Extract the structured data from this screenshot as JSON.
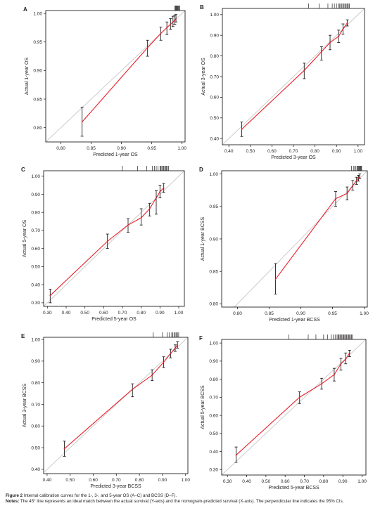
{
  "caption": {
    "figure_label": "Figure 2",
    "figure_text": "Internal calibration curves for the 1-, 3-, and 5-year OS (A–C) and BCSS (D–F).",
    "notes_label": "Notes:",
    "notes_text": "The 45° line represents an ideal match between the actual survival (Y-axis) and the nomogram-predicted survival (X-axis). The perpendicular line indicates the 95% CIs."
  },
  "chart_data": [
    {
      "panel": "A",
      "type": "line",
      "xlabel": "Predicted 1-year OS",
      "ylabel": "Actual 1-year OS",
      "xlim": [
        0.775,
        1.005
      ],
      "ylim": [
        0.775,
        1.005
      ],
      "xticks": [
        "0.80",
        "0.85",
        "0.90",
        "0.95",
        "1.00"
      ],
      "yticks": [
        "0.80",
        "0.85",
        "0.90",
        "0.95",
        "1.00"
      ],
      "ideal_line": true,
      "x": [
        0.835,
        0.943,
        0.965,
        0.975,
        0.981,
        0.985,
        0.988,
        0.99
      ],
      "y": [
        0.81,
        0.94,
        0.965,
        0.975,
        0.981,
        0.985,
        0.988,
        0.991
      ],
      "ci_low": [
        0.785,
        0.925,
        0.953,
        0.963,
        0.972,
        0.977,
        0.981,
        0.985
      ],
      "ci_high": [
        0.836,
        0.953,
        0.976,
        0.985,
        0.991,
        0.995,
        0.997,
        0.998
      ],
      "rug": [
        0.988,
        0.989,
        0.99,
        0.991,
        0.992,
        0.993,
        0.994,
        0.995,
        0.996
      ]
    },
    {
      "panel": "B",
      "type": "line",
      "xlabel": "Predicted 3-year OS",
      "ylabel": "Actual 3-year OS",
      "xlim": [
        0.37,
        1.03
      ],
      "ylim": [
        0.37,
        1.03
      ],
      "xticks": [
        "0.40",
        "0.50",
        "0.60",
        "0.70",
        "0.80",
        "0.90",
        "1.00"
      ],
      "yticks": [
        "0.40",
        "0.50",
        "0.60",
        "0.70",
        "0.80",
        "0.90",
        "1.00"
      ],
      "ideal_line": true,
      "x": [
        0.46,
        0.75,
        0.83,
        0.87,
        0.91,
        0.93,
        0.95
      ],
      "y": [
        0.445,
        0.73,
        0.82,
        0.865,
        0.895,
        0.93,
        0.96
      ],
      "ci_low": [
        0.41,
        0.69,
        0.78,
        0.83,
        0.865,
        0.905,
        0.945
      ],
      "ci_high": [
        0.48,
        0.765,
        0.845,
        0.9,
        0.925,
        0.955,
        0.975
      ],
      "rug": [
        0.77,
        0.82,
        0.86,
        0.88,
        0.89,
        0.9,
        0.91,
        0.915,
        0.92,
        0.925,
        0.93,
        0.935,
        0.94,
        0.945,
        0.95,
        0.955,
        0.96
      ]
    },
    {
      "panel": "C",
      "type": "line",
      "xlabel": "Predicted 5-year OS",
      "ylabel": "Actual 5-year OS",
      "xlim": [
        0.28,
        1.03
      ],
      "ylim": [
        0.28,
        1.03
      ],
      "xticks": [
        "0.30",
        "0.40",
        "0.50",
        "0.60",
        "0.70",
        "0.80",
        "0.90",
        "1.00"
      ],
      "yticks": [
        "0.30",
        "0.40",
        "0.50",
        "0.60",
        "0.70",
        "0.80",
        "0.90",
        "1.00"
      ],
      "ideal_line": true,
      "x": [
        0.315,
        0.62,
        0.73,
        0.8,
        0.845,
        0.88,
        0.9,
        0.92
      ],
      "y": [
        0.34,
        0.64,
        0.73,
        0.77,
        0.82,
        0.88,
        0.915,
        0.935
      ],
      "ci_low": [
        0.3,
        0.6,
        0.69,
        0.73,
        0.78,
        0.79,
        0.88,
        0.91
      ],
      "ci_high": [
        0.375,
        0.68,
        0.765,
        0.82,
        0.85,
        0.92,
        0.95,
        0.96
      ],
      "rug": [
        0.7,
        0.78,
        0.83,
        0.86,
        0.87,
        0.88,
        0.89,
        0.9,
        0.905,
        0.91,
        0.915,
        0.92,
        0.925,
        0.93,
        0.935,
        0.94,
        0.945
      ]
    },
    {
      "panel": "D",
      "type": "line",
      "xlabel": "Predicted 1-year BCSS",
      "ylabel": "Actual 1-year BCSS",
      "xlim": [
        0.775,
        1.005
      ],
      "ylim": [
        0.795,
        1.005
      ],
      "xticks": [
        "0.80",
        "0.85",
        "0.90",
        "0.95",
        "1.00"
      ],
      "yticks": [
        "0.80",
        "0.85",
        "0.90",
        "0.95",
        "1.00"
      ],
      "ideal_line": true,
      "x": [
        0.86,
        0.955,
        0.973,
        0.982,
        0.988,
        0.991,
        0.993
      ],
      "y": [
        0.838,
        0.962,
        0.97,
        0.982,
        0.99,
        0.994,
        0.996
      ],
      "ci_low": [
        0.815,
        0.95,
        0.96,
        0.975,
        0.984,
        0.989,
        0.993
      ],
      "ci_high": [
        0.862,
        0.973,
        0.98,
        0.99,
        0.995,
        0.998,
        1.0
      ],
      "rug": [
        0.98,
        0.983,
        0.985,
        0.987,
        0.989,
        0.99,
        0.991,
        0.992,
        0.993,
        0.994,
        0.995,
        0.996
      ]
    },
    {
      "panel": "E",
      "type": "line",
      "xlabel": "Predicted 3-year BCSS",
      "ylabel": "Actual 3-year BCSS",
      "xlim": [
        0.385,
        1.01
      ],
      "ylim": [
        0.38,
        1.01
      ],
      "xticks": [
        "0.40",
        "0.50",
        "0.60",
        "0.70",
        "0.80",
        "0.90",
        "1.00"
      ],
      "yticks": [
        "0.40",
        "0.50",
        "0.60",
        "0.70",
        "0.80",
        "0.90",
        "1.00"
      ],
      "ideal_line": true,
      "x": [
        0.475,
        0.77,
        0.855,
        0.905,
        0.935,
        0.955,
        0.965
      ],
      "y": [
        0.495,
        0.77,
        0.835,
        0.895,
        0.935,
        0.96,
        0.975
      ],
      "ci_low": [
        0.46,
        0.735,
        0.81,
        0.87,
        0.915,
        0.945,
        0.96
      ],
      "ci_high": [
        0.53,
        0.795,
        0.86,
        0.92,
        0.955,
        0.975,
        0.99
      ],
      "rug": [
        0.86,
        0.9,
        0.92,
        0.93,
        0.94,
        0.945,
        0.95,
        0.955,
        0.96,
        0.965,
        0.97
      ]
    },
    {
      "panel": "F",
      "type": "line",
      "xlabel": "Predicted 5-year BCSS",
      "ylabel": "Actual 5-year BCSS",
      "xlim": [
        0.27,
        1.02
      ],
      "ylim": [
        0.27,
        1.02
      ],
      "xticks": [
        "0.30",
        "0.40",
        "0.50",
        "0.60",
        "0.70",
        "0.80",
        "0.90",
        "1.00"
      ],
      "yticks": [
        "0.30",
        "0.40",
        "0.50",
        "0.60",
        "0.70",
        "0.80",
        "0.90",
        "1.00"
      ],
      "ideal_line": true,
      "x": [
        0.345,
        0.675,
        0.79,
        0.855,
        0.89,
        0.915,
        0.935
      ],
      "y": [
        0.38,
        0.7,
        0.775,
        0.825,
        0.885,
        0.91,
        0.945
      ],
      "ci_low": [
        0.34,
        0.665,
        0.745,
        0.79,
        0.85,
        0.885,
        0.925
      ],
      "ci_high": [
        0.425,
        0.73,
        0.805,
        0.86,
        0.915,
        0.945,
        0.96
      ],
      "rug": [
        0.62,
        0.72,
        0.76,
        0.8,
        0.82,
        0.84,
        0.85,
        0.86,
        0.87,
        0.875,
        0.88,
        0.885,
        0.89,
        0.895,
        0.9,
        0.905,
        0.91,
        0.915,
        0.92,
        0.925,
        0.93,
        0.935,
        0.94,
        0.945,
        0.95
      ]
    }
  ]
}
